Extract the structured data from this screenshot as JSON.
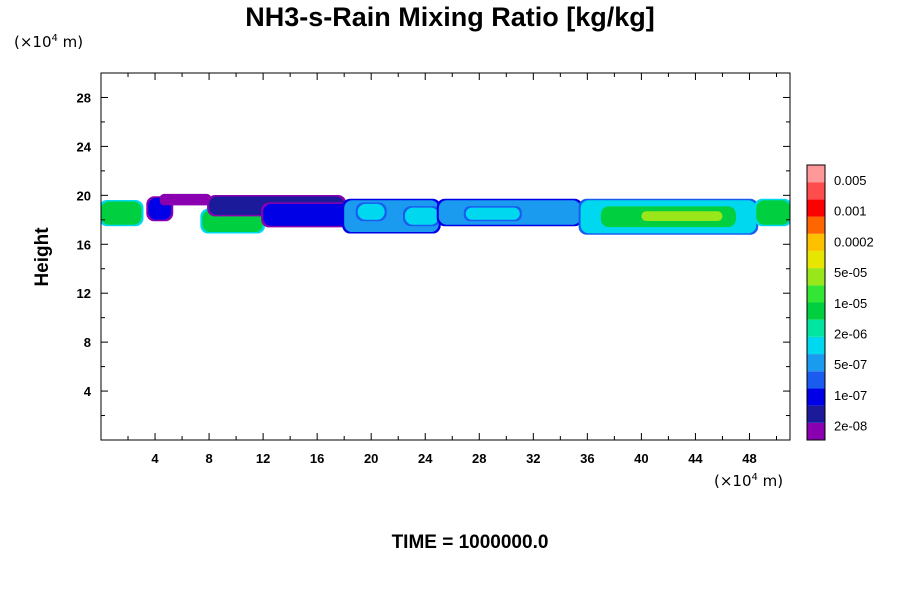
{
  "chart_data": {
    "type": "heatmap",
    "title": "NH3-s-Rain Mixing Ratio [kg/kg]",
    "ylabel": "Height",
    "xlabel": "",
    "x_unit": {
      "prefix": "(×10",
      "exp": "4",
      "suffix": " m)"
    },
    "y_unit": {
      "prefix": "(×10",
      "exp": "4",
      "suffix": " m)"
    },
    "xlim": [
      0,
      51
    ],
    "ylim": [
      0,
      30
    ],
    "x_ticks": [
      4,
      8,
      12,
      16,
      20,
      24,
      28,
      32,
      36,
      40,
      44,
      48
    ],
    "y_ticks": [
      4,
      8,
      12,
      16,
      20,
      24,
      28
    ],
    "colorbar": {
      "labels": [
        "0.005",
        "0.001",
        "0.0002",
        "5e-05",
        "1e-05",
        "2e-06",
        "5e-07",
        "1e-07",
        "2e-08"
      ],
      "colors": [
        "#8a00b0",
        "#1a1a9a",
        "#0000e6",
        "#1a5cf0",
        "#1a9bf0",
        "#00d8f0",
        "#00e6a0",
        "#00d040",
        "#33e633",
        "#99e61a",
        "#e6e600",
        "#ffc000",
        "#ff6600",
        "#ff0000",
        "#ff4d4d",
        "#ff9999"
      ]
    },
    "cloud_layer": [
      {
        "x0": 0.0,
        "x1": 3.0,
        "y0": 17.6,
        "y1": 19.5,
        "level": 7
      },
      {
        "x0": 3.5,
        "x1": 5.2,
        "y0": 18.0,
        "y1": 19.8,
        "level": 2
      },
      {
        "x0": 4.5,
        "x1": 8.0,
        "y0": 19.3,
        "y1": 20.0,
        "level": 0
      },
      {
        "x0": 7.5,
        "x1": 12.0,
        "y0": 17.0,
        "y1": 18.8,
        "level": 7
      },
      {
        "x0": 8.0,
        "x1": 18.0,
        "y0": 18.4,
        "y1": 19.9,
        "level": 1
      },
      {
        "x0": 12.0,
        "x1": 18.5,
        "y0": 17.5,
        "y1": 19.3,
        "level": 2
      },
      {
        "x0": 18.0,
        "x1": 25.0,
        "y0": 17.0,
        "y1": 19.6,
        "level": 4
      },
      {
        "x0": 19.0,
        "x1": 21.0,
        "y0": 18.0,
        "y1": 19.3,
        "level": 5
      },
      {
        "x0": 22.5,
        "x1": 25.0,
        "y0": 17.6,
        "y1": 19.0,
        "level": 5
      },
      {
        "x0": 25.0,
        "x1": 35.5,
        "y0": 17.6,
        "y1": 19.6,
        "level": 4
      },
      {
        "x0": 27.0,
        "x1": 31.0,
        "y0": 18.0,
        "y1": 19.0,
        "level": 5
      },
      {
        "x0": 35.5,
        "x1": 48.5,
        "y0": 16.9,
        "y1": 19.6,
        "level": 5
      },
      {
        "x0": 37.0,
        "x1": 47.0,
        "y0": 17.4,
        "y1": 19.1,
        "level": 7
      },
      {
        "x0": 40.0,
        "x1": 46.0,
        "y0": 17.9,
        "y1": 18.7,
        "level": 9
      },
      {
        "x0": 48.5,
        "x1": 51.0,
        "y0": 17.6,
        "y1": 19.6,
        "level": 7
      }
    ]
  },
  "time_label": "TIME = 1000000.0"
}
